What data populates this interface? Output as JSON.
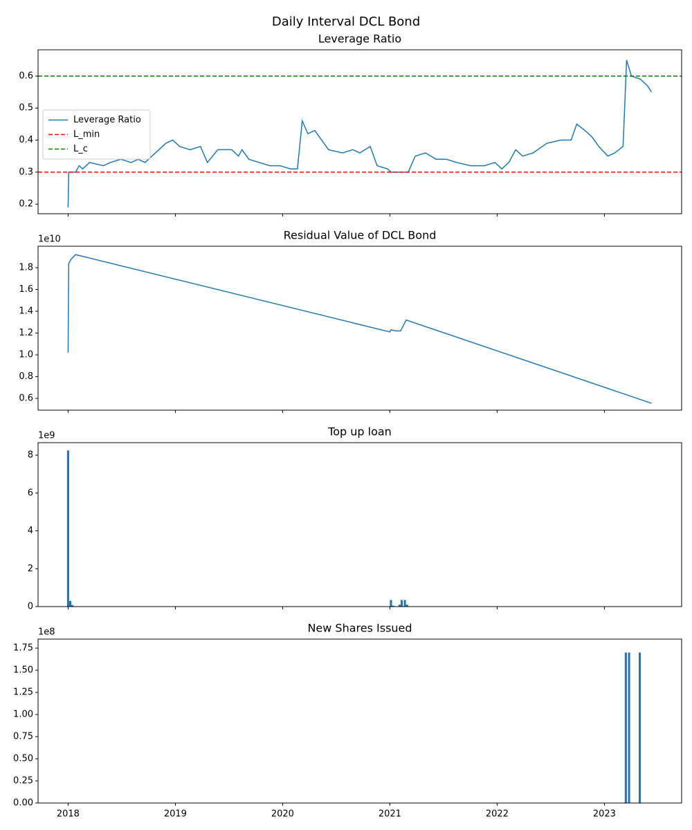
{
  "title": "Daily Interval DCL Bond",
  "chart_data": [
    {
      "type": "line",
      "title": "Leverage Ratio",
      "x": [
        2018.0,
        2018.006,
        2018.071,
        2018.103,
        2018.136,
        2018.2,
        2018.329,
        2018.394,
        2018.491,
        2018.588,
        2018.653,
        2018.717,
        2018.782,
        2018.847,
        2018.911,
        2018.976,
        2019.041,
        2019.138,
        2019.234,
        2019.299,
        2019.396,
        2019.525,
        2019.589,
        2019.621,
        2019.686,
        2019.783,
        2019.88,
        2019.977,
        2020.074,
        2020.138,
        2020.183,
        2020.235,
        2020.3,
        2020.364,
        2020.429,
        2020.558,
        2020.655,
        2020.72,
        2020.817,
        2020.881,
        2020.978,
        2021.01,
        2021.107,
        2021.172,
        2021.236,
        2021.333,
        2021.43,
        2021.527,
        2021.624,
        2021.753,
        2021.882,
        2021.979,
        2022.044,
        2022.109,
        2022.173,
        2022.238,
        2022.335,
        2022.464,
        2022.593,
        2022.69,
        2022.742,
        2022.819,
        2022.884,
        2022.948,
        2023.032,
        2023.097,
        2023.174,
        2023.207,
        2023.252,
        2023.336,
        2023.401,
        2023.439
      ],
      "series": [
        {
          "name": "Leverage Ratio",
          "color": "#1f77b4",
          "values": [
            0.19,
            0.3,
            0.3,
            0.32,
            0.31,
            0.33,
            0.32,
            0.33,
            0.34,
            0.33,
            0.34,
            0.33,
            0.35,
            0.37,
            0.39,
            0.4,
            0.38,
            0.37,
            0.38,
            0.33,
            0.37,
            0.37,
            0.35,
            0.37,
            0.34,
            0.33,
            0.32,
            0.32,
            0.31,
            0.31,
            0.46,
            0.42,
            0.43,
            0.4,
            0.37,
            0.36,
            0.37,
            0.36,
            0.38,
            0.32,
            0.31,
            0.3,
            0.3,
            0.3,
            0.35,
            0.36,
            0.34,
            0.34,
            0.33,
            0.32,
            0.32,
            0.33,
            0.31,
            0.33,
            0.37,
            0.35,
            0.36,
            0.39,
            0.4,
            0.4,
            0.45,
            0.43,
            0.41,
            0.38,
            0.35,
            0.36,
            0.38,
            0.65,
            0.6,
            0.59,
            0.57,
            0.55
          ]
        }
      ],
      "hlines": [
        {
          "name": "L_min",
          "value": 0.3,
          "color": "red"
        },
        {
          "name": "L_c",
          "value": 0.6,
          "color": "green"
        }
      ],
      "legend": "center left",
      "xlim": [
        2017.72,
        2023.72
      ],
      "xticks": [
        2018,
        2019,
        2020,
        2021,
        2022,
        2023
      ],
      "show_xticklabels": false,
      "ylim": [
        0.17,
        0.682
      ],
      "yticks": [
        0.2,
        0.3,
        0.4,
        0.5,
        0.6
      ]
    },
    {
      "type": "line",
      "title": "Residual Value of DCL Bond",
      "offset_label": "1e10",
      "x": [
        2018.0,
        2018.006,
        2018.03,
        2018.07,
        2021.0,
        2021.01,
        2021.05,
        2021.1,
        2021.152,
        2023.439
      ],
      "series": [
        {
          "color": "#1f77b4",
          "values": [
            1.02,
            1.84,
            1.88,
            1.92,
            1.21,
            1.23,
            1.22,
            1.22,
            1.32,
            0.555
          ]
        }
      ],
      "xlim": [
        2017.72,
        2023.72
      ],
      "xticks": [
        2018,
        2019,
        2020,
        2021,
        2022,
        2023
      ],
      "show_xticklabels": false,
      "ylim": [
        0.492,
        1.997
      ],
      "yticks": [
        0.6,
        0.8,
        {
          "value": 1.0,
          "label": "1.0"
        },
        1.2,
        1.4,
        1.6,
        1.8
      ]
    },
    {
      "type": "bar",
      "title": "Top up loan",
      "offset_label": "1e9",
      "x": [
        2018.0,
        2018.02,
        2018.04,
        2021.01,
        2021.03,
        2021.09,
        2021.11,
        2021.14,
        2021.16
      ],
      "values": [
        8.25,
        0.3,
        0.08,
        0.35,
        0.05,
        0.1,
        0.35,
        0.35,
        0.1
      ],
      "color": "#1f77b4",
      "xlim": [
        2017.72,
        2023.72
      ],
      "xticks": [
        2018,
        2019,
        2020,
        2021,
        2022,
        2023
      ],
      "show_xticklabels": false,
      "ylim": [
        0,
        8.66
      ],
      "yticks": [
        0,
        2,
        4,
        6,
        8
      ]
    },
    {
      "type": "bar",
      "title": "New Shares Issued",
      "offset_label": "1e8",
      "x": [
        2023.2,
        2023.23,
        2023.33
      ],
      "values": [
        1.7,
        1.7,
        1.7
      ],
      "color": "#1f77b4",
      "xlim": [
        2017.72,
        2023.72
      ],
      "xticks": [
        2018,
        2019,
        2020,
        2021,
        2022,
        2023
      ],
      "show_xticklabels": true,
      "ylim": [
        0,
        1.852
      ],
      "yticks": [
        {
          "value": 0,
          "label": "0.00"
        },
        0.25,
        {
          "value": 0.5,
          "label": "0.50"
        },
        0.75,
        {
          "value": 1.0,
          "label": "1.00"
        },
        1.25,
        {
          "value": 1.5,
          "label": "1.50"
        },
        1.75
      ]
    }
  ]
}
